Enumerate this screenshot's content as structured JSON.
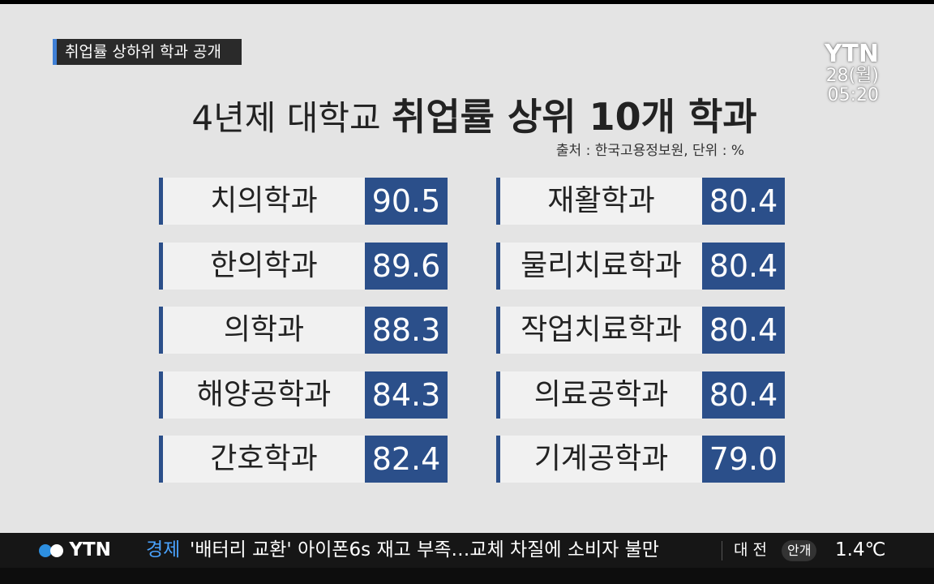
{
  "header": {
    "tag": "취업률 상하위 학과 공개"
  },
  "logo": {
    "brand": "YTN",
    "date": "28(월)",
    "time": "05:20"
  },
  "title": {
    "normal": "4년제 대학교",
    "bold": "취업률 상위 10개 학과"
  },
  "source": "출처 : 한국고용정보원, 단위 : %",
  "table": {
    "left": [
      {
        "name": "치의학과",
        "value": "90.5"
      },
      {
        "name": "한의학과",
        "value": "89.6"
      },
      {
        "name": "의학과",
        "value": "88.3"
      },
      {
        "name": "해양공학과",
        "value": "84.3"
      },
      {
        "name": "간호학과",
        "value": "82.4"
      }
    ],
    "right": [
      {
        "name": "재활학과",
        "value": "80.4"
      },
      {
        "name": "물리치료학과",
        "value": "80.4"
      },
      {
        "name": "작업치료학과",
        "value": "80.4"
      },
      {
        "name": "의료공학과",
        "value": "80.4"
      },
      {
        "name": "기계공학과",
        "value": "79.0"
      }
    ]
  },
  "ticker": {
    "brand": "YTN",
    "category": "경제",
    "headline": "'배터리 교환' 아이폰6s 재고 부족…교체 차질에 소비자 불만",
    "region": "대 전",
    "weather": "안개",
    "temperature": "1.4℃"
  }
}
